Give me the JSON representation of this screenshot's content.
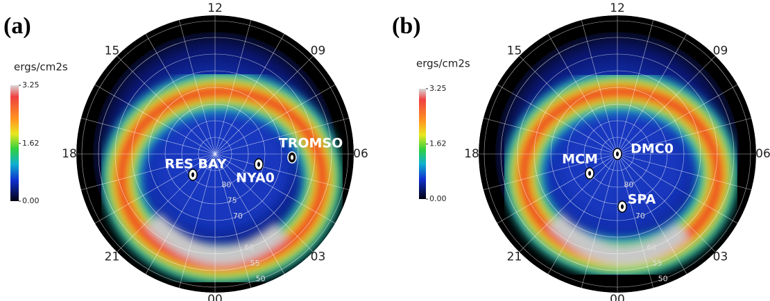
{
  "panels": [
    {
      "label": "(a)",
      "colorbar": {
        "title": "ergs/cm2s",
        "ticks": [
          3.25,
          1.62,
          {
            "value": 0,
            "label": "0.00"
          }
        ]
      },
      "hours": [
        "12",
        "15",
        "09",
        "18",
        "06",
        "21",
        "03",
        "00"
      ],
      "latitudes": [
        "80",
        "75",
        "70",
        "60",
        "55",
        "50"
      ],
      "stations": [
        "RES BAY",
        "NYA0",
        "TROMSO"
      ]
    },
    {
      "label": "(b)",
      "colorbar": {
        "title": "ergs/cm2s",
        "ticks": [
          3.25,
          1.62,
          {
            "value": 0,
            "label": "0.00"
          }
        ]
      },
      "hours": [
        "12",
        "15",
        "09",
        "18",
        "06",
        "21",
        "03",
        "00"
      ],
      "latitudes": [
        "80",
        "70",
        "60",
        "55",
        "50"
      ],
      "stations": [
        "DMC0",
        "MCM",
        "SPA"
      ]
    }
  ]
}
